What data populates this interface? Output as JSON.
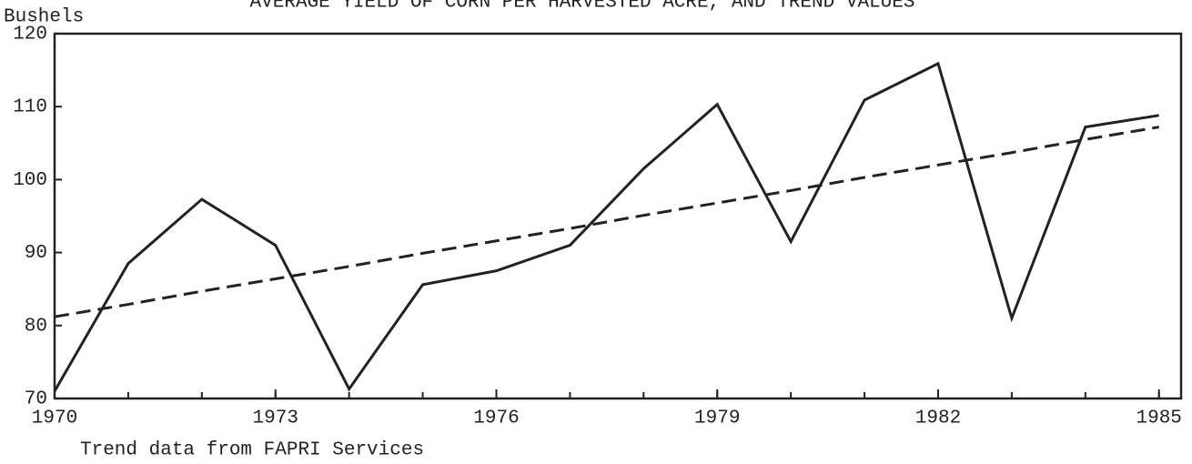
{
  "chart_data": {
    "type": "line",
    "title": "AVERAGE YIELD OF CORN PER HARVESTED ACRE, AND TREND VALUES",
    "y_label": "Bushels",
    "note": "Trend data from FAPRI Services",
    "x": [
      1970,
      1971,
      1972,
      1973,
      1974,
      1975,
      1976,
      1977,
      1978,
      1979,
      1980,
      1981,
      1982,
      1983,
      1984,
      1985
    ],
    "series": [
      {
        "color": "#222222",
        "dash": "solid",
        "values": [
          71,
          88.5,
          97.3,
          91,
          71.3,
          85.6,
          87.5,
          91,
          101.5,
          110.3,
          91.5,
          110.9,
          115.9,
          81,
          107.2,
          108.8
        ]
      },
      {
        "color": "#222222",
        "dash": "dashed",
        "values": [
          81.2,
          82.9,
          84.7,
          86.4,
          88.1,
          89.9,
          91.6,
          93.3,
          95.1,
          96.8,
          98.5,
          100.3,
          102.0,
          103.7,
          105.5,
          107.2
        ]
      }
    ],
    "xlim": [
      1970,
      1985.3
    ],
    "xticks": [
      1970,
      1973,
      1976,
      1979,
      1982,
      1985
    ],
    "ylim": [
      70,
      120
    ],
    "yticks": [
      70,
      80,
      90,
      100,
      110,
      120
    ]
  }
}
